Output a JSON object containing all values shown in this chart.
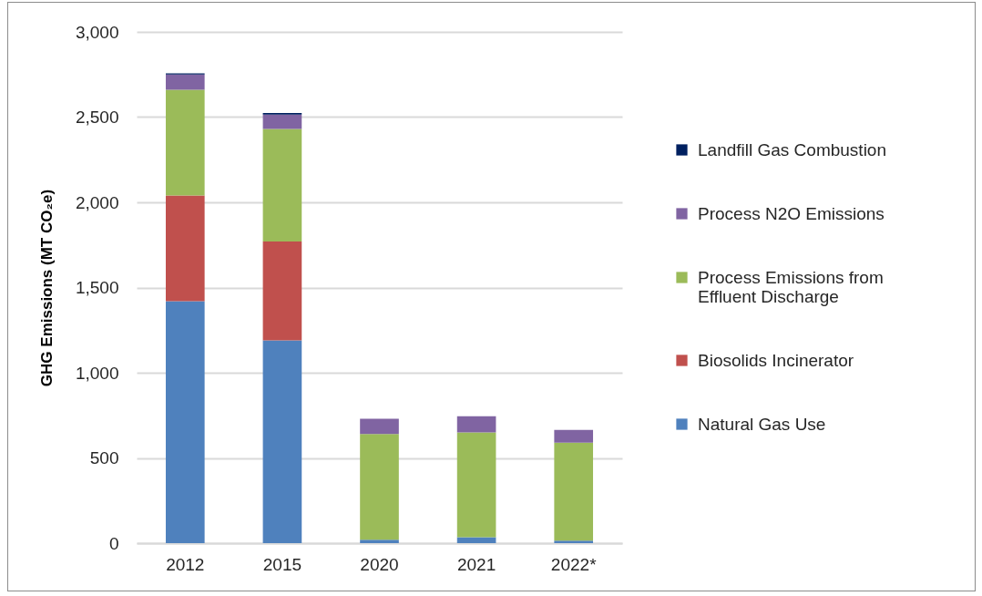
{
  "chart_data": {
    "type": "bar",
    "ylabel": "GHG Emissions (MT CO₂e)",
    "categories": [
      "2012",
      "2015",
      "2020",
      "2021",
      "2022*"
    ],
    "stacked": true,
    "series": [
      {
        "name": "Natural Gas Use",
        "color": "#4f81bd",
        "values": [
          1420,
          1190,
          20,
          35,
          15
        ]
      },
      {
        "name": "Biosolids Incinerator",
        "color": "#c0504d",
        "values": [
          620,
          580,
          0,
          0,
          0
        ]
      },
      {
        "name": "Process Emissions from Effluent Discharge",
        "color": "#9bbb59",
        "values": [
          620,
          660,
          620,
          615,
          575
        ]
      },
      {
        "name": "Process N2O Emissions",
        "color": "#8064a2",
        "values": [
          90,
          85,
          90,
          95,
          75
        ]
      },
      {
        "name": "Landfill Gas Combustion",
        "color": "#002060",
        "values": [
          7,
          9,
          0,
          0,
          0
        ]
      }
    ],
    "ylim": [
      0,
      3000
    ],
    "yticks": [
      0,
      500,
      {
        "value": 1000,
        "label": "1,000"
      },
      {
        "value": 1500,
        "label": "1,500"
      },
      {
        "value": 2000,
        "label": "2,000"
      },
      {
        "value": 2500,
        "label": "2,500"
      },
      {
        "value": 3000,
        "label": "3,000"
      }
    ],
    "grid": "y",
    "legend": "right"
  }
}
